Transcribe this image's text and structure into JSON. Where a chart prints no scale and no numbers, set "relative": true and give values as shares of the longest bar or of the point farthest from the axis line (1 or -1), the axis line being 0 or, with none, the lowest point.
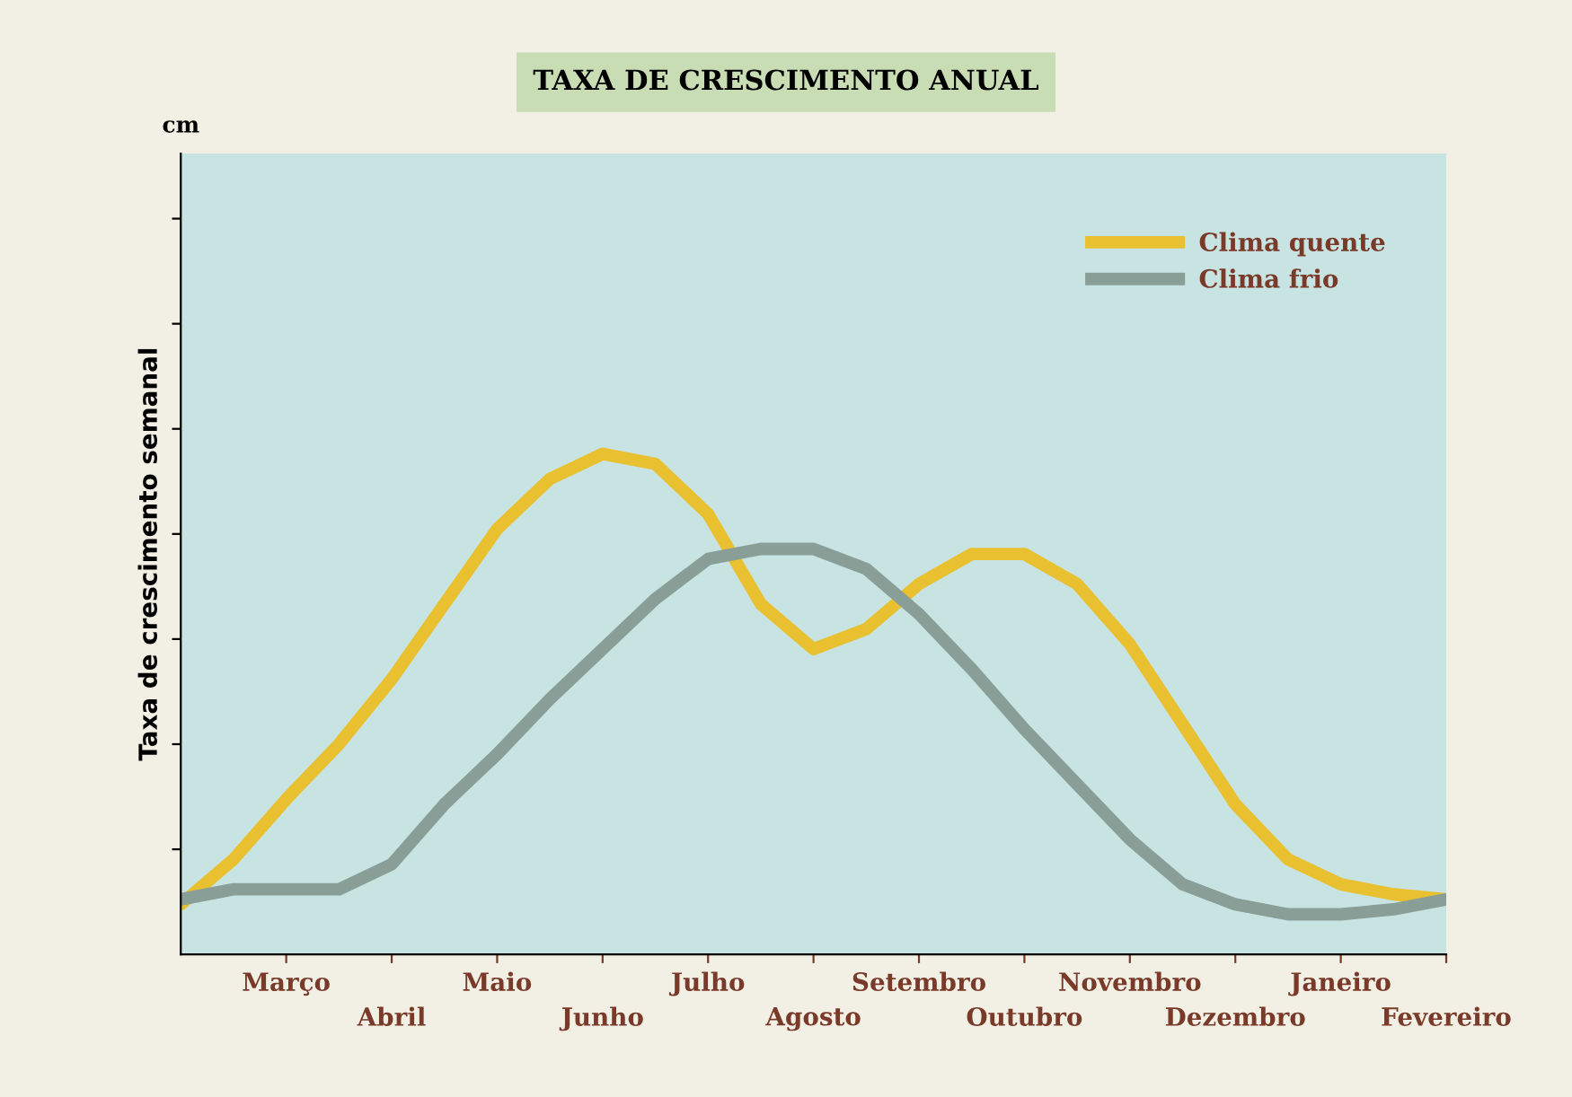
{
  "chart_data": {
    "type": "line",
    "title": "TAXA DE CRESCIMENTO ANUAL",
    "ylabel": "Taxa de crescimento semanal",
    "annotations": [
      "cm"
    ],
    "relative": true,
    "tick_labels": "x",
    "grid": false,
    "legend": "top right",
    "marker": "none",
    "line_style": "solid",
    "categories": [
      null,
      null,
      "Março",
      null,
      "Abril",
      null,
      "Maio",
      null,
      "Junho",
      null,
      "Julho",
      null,
      "Agosto",
      null,
      "Setembro",
      null,
      "Outubro",
      null,
      "Novembro",
      null,
      "Dezembro",
      null,
      "Janeiro",
      null,
      "Fevereiro"
    ],
    "series": [
      {
        "name": "Clima quente",
        "color": "#e8c030",
        "values": [
          0.1,
          0.19,
          0.31,
          0.42,
          0.55,
          0.7,
          0.85,
          0.95,
          1.0,
          0.98,
          0.88,
          0.7,
          0.61,
          0.65,
          0.74,
          0.8,
          0.8,
          0.74,
          0.62,
          0.46,
          0.3,
          0.19,
          0.14,
          0.12,
          0.11
        ]
      },
      {
        "name": "Clima frio",
        "color": "#8a9e98",
        "values": [
          0.11,
          0.13,
          0.13,
          0.13,
          0.18,
          0.3,
          0.4,
          0.51,
          0.61,
          0.71,
          0.79,
          0.81,
          0.81,
          0.77,
          0.68,
          0.57,
          0.45,
          0.34,
          0.23,
          0.14,
          0.1,
          0.08,
          0.08,
          0.09,
          0.11
        ]
      }
    ]
  }
}
